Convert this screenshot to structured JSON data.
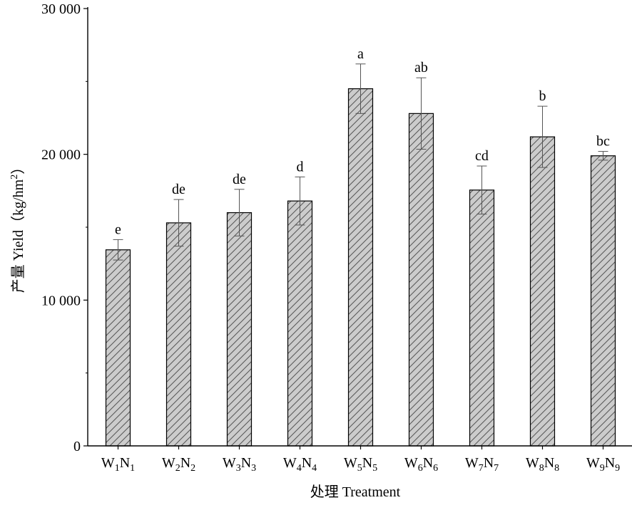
{
  "chart_data": {
    "type": "bar",
    "xlabel": "处理 Treatment",
    "ylabel": "产量 Yield（kg/hm",
    "ylabel_superscript": "2",
    "ylabel_close": "）",
    "ylim": [
      0,
      30000
    ],
    "yticks": [
      0,
      10000,
      20000,
      30000
    ],
    "ytick_labels": [
      "0",
      "10 000",
      "20 000",
      "30 000"
    ],
    "grid": false,
    "bar_fill": "#cccccc",
    "hatch_color": "#555555",
    "categories": [
      {
        "w": "W",
        "ws": "1",
        "n": "N",
        "ns": "1"
      },
      {
        "w": "W",
        "ws": "2",
        "n": "N",
        "ns": "2"
      },
      {
        "w": "W",
        "ws": "3",
        "n": "N",
        "ns": "3"
      },
      {
        "w": "W",
        "ws": "4",
        "n": "N",
        "ns": "4"
      },
      {
        "w": "W",
        "ws": "5",
        "n": "N",
        "ns": "5"
      },
      {
        "w": "W",
        "ws": "6",
        "n": "N",
        "ns": "6"
      },
      {
        "w": "W",
        "ws": "7",
        "n": "N",
        "ns": "7"
      },
      {
        "w": "W",
        "ws": "8",
        "n": "N",
        "ns": "8"
      },
      {
        "w": "W",
        "ws": "9",
        "n": "N",
        "ns": "9"
      }
    ],
    "values": [
      13450,
      15300,
      16000,
      16800,
      24500,
      22800,
      17550,
      21200,
      19900
    ],
    "errors": [
      700,
      1600,
      1600,
      1650,
      1700,
      2450,
      1650,
      2100,
      300
    ],
    "letters": [
      "e",
      "de",
      "de",
      "d",
      "a",
      "ab",
      "cd",
      "b",
      "bc"
    ]
  }
}
